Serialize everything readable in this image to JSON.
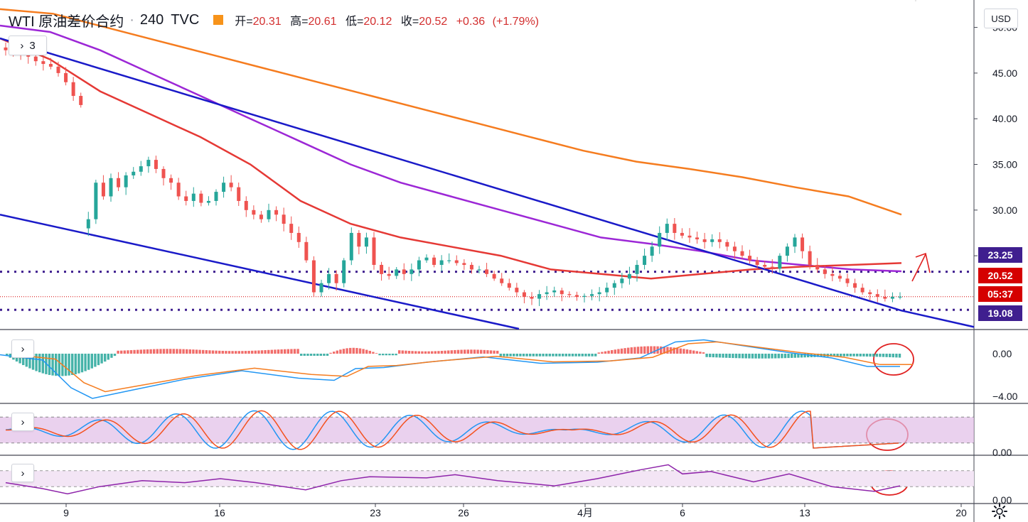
{
  "header": {
    "symbol": "WTI 原油差价合约",
    "interval": "240",
    "source": "TVC",
    "open_label": "开=",
    "open": "20.31",
    "high_label": "高=",
    "high": "20.61",
    "low_label": "低=",
    "low": "20.12",
    "close_label": "收=",
    "close": "20.52",
    "change": "+0.36",
    "change_pct": "(+1.79%)"
  },
  "controls": {
    "indicator_count": "3",
    "currency": "USD",
    "collapse_glyph": "›"
  },
  "badges": {
    "upper_level": "23.25",
    "last_price": "20.52",
    "countdown": "05:37",
    "lower_level": "19.08"
  },
  "colors": {
    "up": "#26a69a",
    "down": "#ef5350",
    "trend_line": "#1a1ac8",
    "ma_orange": "#f57c1f",
    "ma_purple": "#9c27d6",
    "ma_red": "#e53935",
    "level_dotted": "#3f1f8f",
    "annotation": "#e02020"
  },
  "chart_data": [
    {
      "type": "candlestick",
      "title": "WTI 原油差价合约 · 240 · TVC",
      "y_ticks": [
        "50.00",
        "45.00",
        "40.00",
        "35.00",
        "30.00",
        "25.00"
      ],
      "ylim": [
        17,
        53
      ],
      "x_ticks": [
        "9",
        "16",
        "23",
        "26",
        "4月",
        "6",
        "13",
        "20"
      ],
      "series": [
        {
          "name": "",
          "role": "price",
          "close_path": [
            47.5,
            47.2,
            47.0,
            46.8,
            46.3,
            46.0,
            45.7,
            45.0,
            44.0,
            42.5,
            41.5,
            29.0,
            33.0,
            31.5,
            33.5,
            32.5,
            33.8,
            34.2,
            34.8,
            35.5,
            34.5,
            33.5,
            33.0,
            31.5,
            31.0,
            31.8,
            30.8,
            31.0,
            32.0,
            33.0,
            32.5,
            31.0,
            30.0,
            29.5,
            29.0,
            30.0,
            29.5,
            28.5,
            27.5,
            26.5,
            24.5,
            21.0,
            22.0,
            23.0,
            22.0,
            24.5,
            27.5,
            26.0,
            27.0,
            24.0,
            23.0,
            22.8,
            23.5,
            23.0,
            23.5,
            24.5,
            24.8,
            24.0,
            24.5,
            24.5,
            24.2,
            24.0,
            23.5,
            23.5,
            23.0,
            22.5,
            22.0,
            21.5,
            21.0,
            20.5,
            20.3,
            20.8,
            21.0,
            21.2,
            20.8,
            20.7,
            20.5,
            20.6,
            20.8,
            21.0,
            21.5,
            22.0,
            22.5,
            23.0,
            24.0,
            25.0,
            26.0,
            27.5,
            28.5,
            27.5,
            27.2,
            27.0,
            26.8,
            26.5,
            26.8,
            26.5,
            26.0,
            25.5,
            25.0,
            24.5,
            24.0,
            23.8,
            23.6,
            25.0,
            26.0,
            27.0,
            25.5,
            24.0,
            23.5,
            23.0,
            22.8,
            22.5,
            22.0,
            21.5,
            21.0,
            20.8,
            20.5,
            20.3,
            20.5,
            20.52
          ]
        },
        {
          "name": "",
          "role": "moving-average-orange",
          "values": [
            52.0,
            51.5,
            50.0,
            48.5,
            47.0,
            45.5,
            44.0,
            42.5,
            41.0,
            39.5,
            38.0,
            36.5,
            35.3,
            34.5,
            33.6,
            32.5,
            31.5,
            29.5
          ]
        },
        {
          "name": "",
          "role": "moving-average-purple",
          "values": [
            50.2,
            49.5,
            47.5,
            45.0,
            42.5,
            40.0,
            37.5,
            35.0,
            33.0,
            31.5,
            30.0,
            28.5,
            27.0,
            26.3,
            25.5,
            24.5,
            24.0,
            23.5,
            23.3
          ]
        },
        {
          "name": "",
          "role": "moving-average-red",
          "values": [
            48.8,
            46.5,
            43.0,
            40.5,
            38.0,
            35.0,
            31.0,
            28.5,
            27.0,
            26.0,
            25.0,
            23.5,
            23.0,
            22.5,
            23.0,
            23.5,
            23.8,
            24.0,
            24.2
          ]
        },
        {
          "name": "",
          "role": "upper-trend-line",
          "points": [
            [
              0,
              48.8
            ],
            [
              1268,
              19.0
            ],
            [
              1370,
              17.2
            ]
          ]
        },
        {
          "name": "",
          "role": "lower-trend-line",
          "points": [
            [
              0,
              29.5
            ],
            [
              730,
              17.0
            ]
          ]
        },
        {
          "name": "",
          "role": "upper-level",
          "value": 23.25
        },
        {
          "name": "",
          "role": "lower-level",
          "value": 19.08
        },
        {
          "name": "",
          "role": "last-price",
          "value": 20.52
        }
      ]
    },
    {
      "type": "histogram",
      "title": "",
      "y_ticks": [
        "0.00",
        "−4.00"
      ],
      "ylim": [
        -4.6,
        2.2
      ]
    },
    {
      "type": "line",
      "title": "",
      "y_ticks": [
        "0.00"
      ],
      "ylim": [
        0,
        100
      ]
    },
    {
      "type": "line",
      "title": "",
      "y_ticks": [
        "0.00"
      ],
      "ylim": [
        0,
        100
      ]
    }
  ]
}
